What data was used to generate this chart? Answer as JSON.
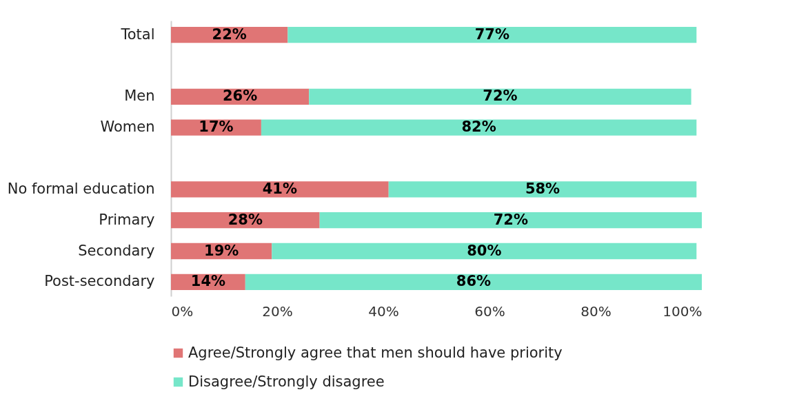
{
  "chart_data": {
    "type": "bar",
    "orientation": "horizontal",
    "stacked": true,
    "categories": [
      "Total",
      null,
      "Men",
      "Women",
      null,
      "No formal education",
      "Primary",
      "Secondary",
      "Post-secondary"
    ],
    "series": [
      {
        "name": "Agree/Strongly agree that men should have priority",
        "color": "#e07575",
        "values": [
          22,
          null,
          26,
          17,
          null,
          41,
          28,
          19,
          14
        ],
        "value_labels": [
          "22%",
          null,
          "26%",
          "17%",
          null,
          "41%",
          "28%",
          "19%",
          "14%"
        ]
      },
      {
        "name": "Disagree/Strongly disagree",
        "color": "#76e6c9",
        "values": [
          77,
          null,
          72,
          82,
          null,
          58,
          72,
          80,
          86
        ],
        "value_labels": [
          "77%",
          null,
          "72%",
          "82%",
          null,
          "58%",
          "72%",
          "80%",
          "86%"
        ]
      }
    ],
    "xlim": [
      0,
      100
    ],
    "xticks": [
      {
        "value": 0,
        "label": "0%"
      },
      {
        "value": 20,
        "label": "20%"
      },
      {
        "value": 40,
        "label": "40%"
      },
      {
        "value": 60,
        "label": "60%"
      },
      {
        "value": 80,
        "label": "80%"
      },
      {
        "value": 100,
        "label": "100%"
      }
    ],
    "grid": false,
    "legend": "bottom"
  }
}
